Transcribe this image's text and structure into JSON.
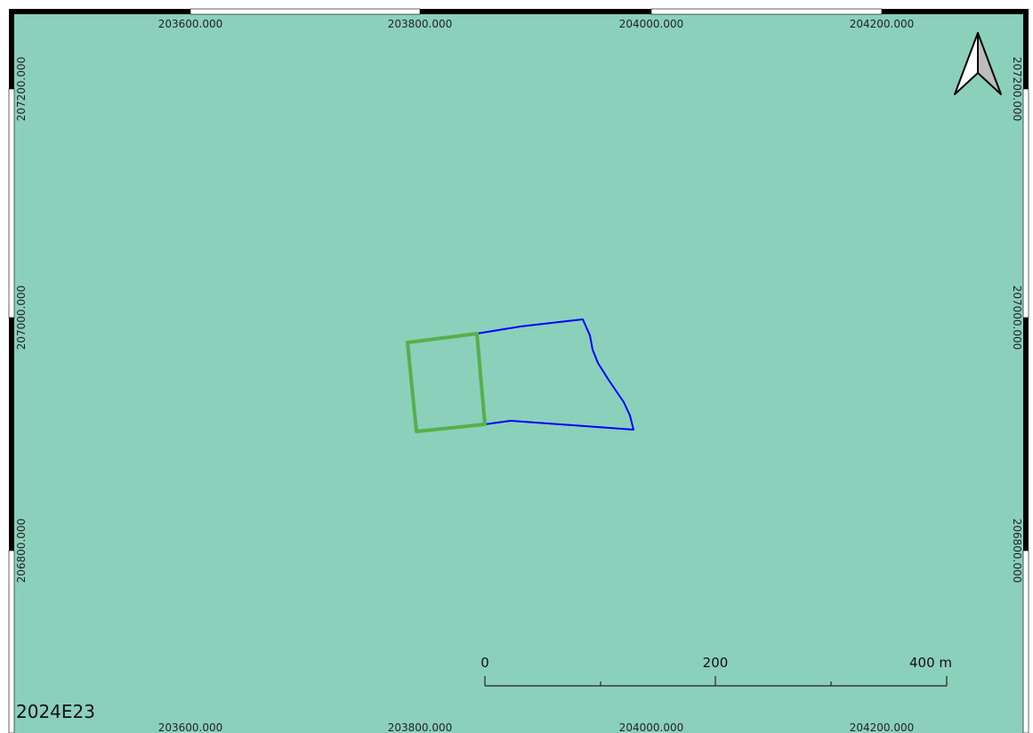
{
  "map": {
    "id_label": "2024E23",
    "background_color": "#8bd0ba",
    "frame_colors": [
      "#000000",
      "#ffffff"
    ]
  },
  "grid": {
    "x_labels": [
      "203600.000",
      "203800.000",
      "204000.000",
      "204200.000"
    ],
    "y_labels": [
      "207200.000",
      "207000.000",
      "206800.000"
    ]
  },
  "features": {
    "parcel_color": "#0000ff",
    "highlight_color": "#55b04a"
  },
  "scale_bar": {
    "labels": [
      "0",
      "200",
      "400 m"
    ]
  },
  "north_arrow": {
    "icon": "north-arrow-icon"
  }
}
